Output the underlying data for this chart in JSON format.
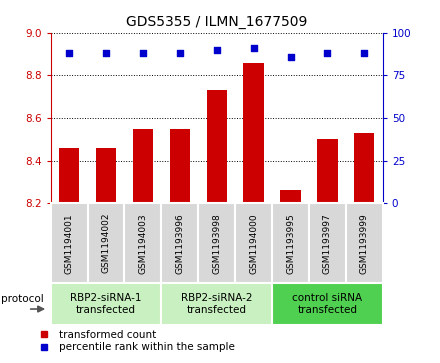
{
  "title": "GDS5355 / ILMN_1677509",
  "samples": [
    "GSM1194001",
    "GSM1194002",
    "GSM1194003",
    "GSM1193996",
    "GSM1193998",
    "GSM1194000",
    "GSM1193995",
    "GSM1193997",
    "GSM1193999"
  ],
  "red_values": [
    8.46,
    8.46,
    8.55,
    8.55,
    8.73,
    8.86,
    8.26,
    8.5,
    8.53
  ],
  "blue_values": [
    88,
    88,
    88,
    88,
    90,
    91,
    86,
    88,
    88
  ],
  "ylim_left": [
    8.2,
    9.0
  ],
  "ylim_right": [
    0,
    100
  ],
  "yticks_left": [
    8.2,
    8.4,
    8.6,
    8.8,
    9.0
  ],
  "yticks_right": [
    0,
    25,
    50,
    75,
    100
  ],
  "groups": [
    {
      "label": "RBP2-siRNA-1\ntransfected",
      "start": 0,
      "end": 3,
      "color": "#c8f0c0"
    },
    {
      "label": "RBP2-siRNA-2\ntransfected",
      "start": 3,
      "end": 6,
      "color": "#c8f0c0"
    },
    {
      "label": "control siRNA\ntransfected",
      "start": 6,
      "end": 9,
      "color": "#50d050"
    }
  ],
  "bar_color": "#cc0000",
  "dot_color": "#0000cc",
  "sample_box_color": "#d8d8d8",
  "sample_box_edge": "#aaaaaa",
  "protocol_label": "protocol",
  "legend_red": "transformed count",
  "legend_blue": "percentile rank within the sample",
  "title_fontsize": 10,
  "tick_fontsize": 7.5,
  "sample_fontsize": 6.5,
  "group_fontsize": 7.5,
  "legend_fontsize": 7.5
}
